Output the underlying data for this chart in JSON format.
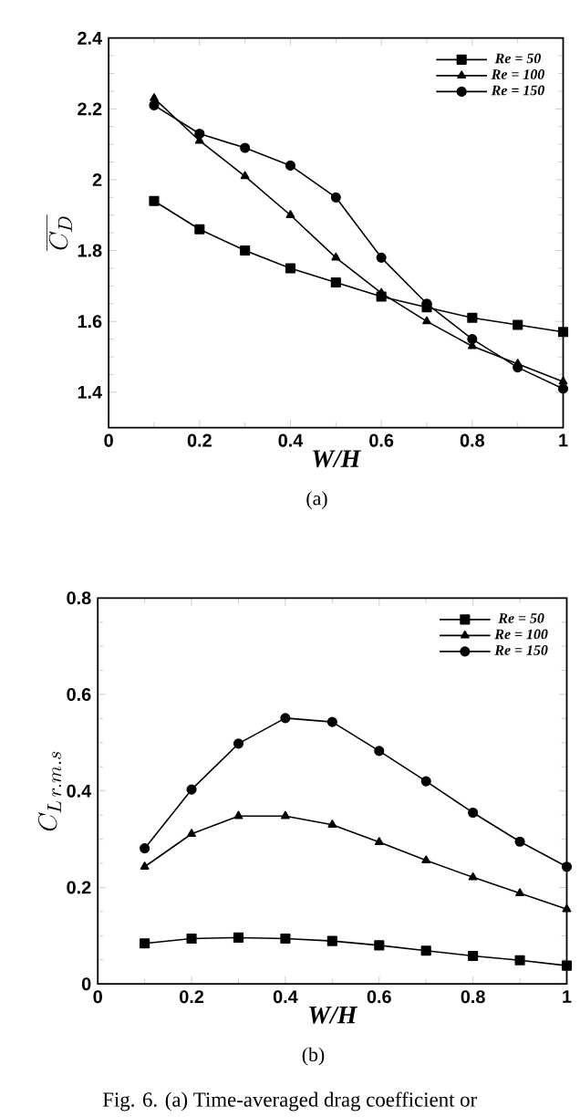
{
  "chart_data": [
    {
      "type": "line",
      "xlabel": "W/H",
      "ylabel": "\\overline{C_D}",
      "x": [
        0.1,
        0.2,
        0.3,
        0.4,
        0.5,
        0.6,
        0.7,
        0.8,
        0.9,
        1.0
      ],
      "series": [
        {
          "name": "Re = 50",
          "color": "#000000",
          "marker": "square",
          "values": [
            1.94,
            1.86,
            1.8,
            1.75,
            1.71,
            1.67,
            1.64,
            1.61,
            1.59,
            1.57
          ]
        },
        {
          "name": "Re = 100",
          "color": "#000000",
          "marker": "triangle",
          "values": [
            2.23,
            2.11,
            2.01,
            1.9,
            1.78,
            1.68,
            1.6,
            1.53,
            1.48,
            1.43
          ]
        },
        {
          "name": "Re = 150",
          "color": "#000000",
          "marker": "circle",
          "values": [
            2.21,
            2.13,
            2.09,
            2.04,
            1.95,
            1.78,
            1.65,
            1.55,
            1.47,
            1.41
          ]
        }
      ],
      "xlim": [
        0,
        1
      ],
      "xticks": [
        0,
        0.2,
        0.4,
        0.6,
        0.8,
        1
      ],
      "ylim": [
        1.3,
        2.4
      ],
      "yticks": [
        1.4,
        1.6,
        1.8,
        2,
        2.2,
        2.4
      ],
      "legend": "top right",
      "line_style": "solid",
      "grid": false,
      "annotations": [
        "(a)"
      ]
    },
    {
      "type": "line",
      "xlabel": "W/H",
      "ylabel": "C_{L\\,r.m.s}",
      "x": [
        0.1,
        0.2,
        0.3,
        0.4,
        0.5,
        0.6,
        0.7,
        0.8,
        0.9,
        1.0
      ],
      "series": [
        {
          "name": "Re = 50",
          "color": "#000000",
          "marker": "square",
          "values": [
            0.084,
            0.094,
            0.096,
            0.094,
            0.089,
            0.08,
            0.069,
            0.058,
            0.049,
            0.038
          ]
        },
        {
          "name": "Re = 100",
          "color": "#000000",
          "marker": "triangle",
          "values": [
            0.243,
            0.311,
            0.348,
            0.348,
            0.33,
            0.294,
            0.256,
            0.221,
            0.188,
            0.155
          ]
        },
        {
          "name": "Re = 150",
          "color": "#000000",
          "marker": "circle",
          "values": [
            0.281,
            0.403,
            0.498,
            0.551,
            0.543,
            0.483,
            0.42,
            0.355,
            0.295,
            0.243
          ]
        }
      ],
      "xlim": [
        0,
        1
      ],
      "xticks": [
        0,
        0.2,
        0.4,
        0.6,
        0.8,
        1
      ],
      "ylim": [
        0,
        0.8
      ],
      "yticks": [
        0,
        0.2,
        0.4,
        0.6,
        0.8
      ],
      "legend": "top right",
      "line_style": "solid",
      "grid": false,
      "annotations": [
        "(b)",
        "Fig. 6. (a) Time-averaged drag coefficient or"
      ]
    }
  ]
}
